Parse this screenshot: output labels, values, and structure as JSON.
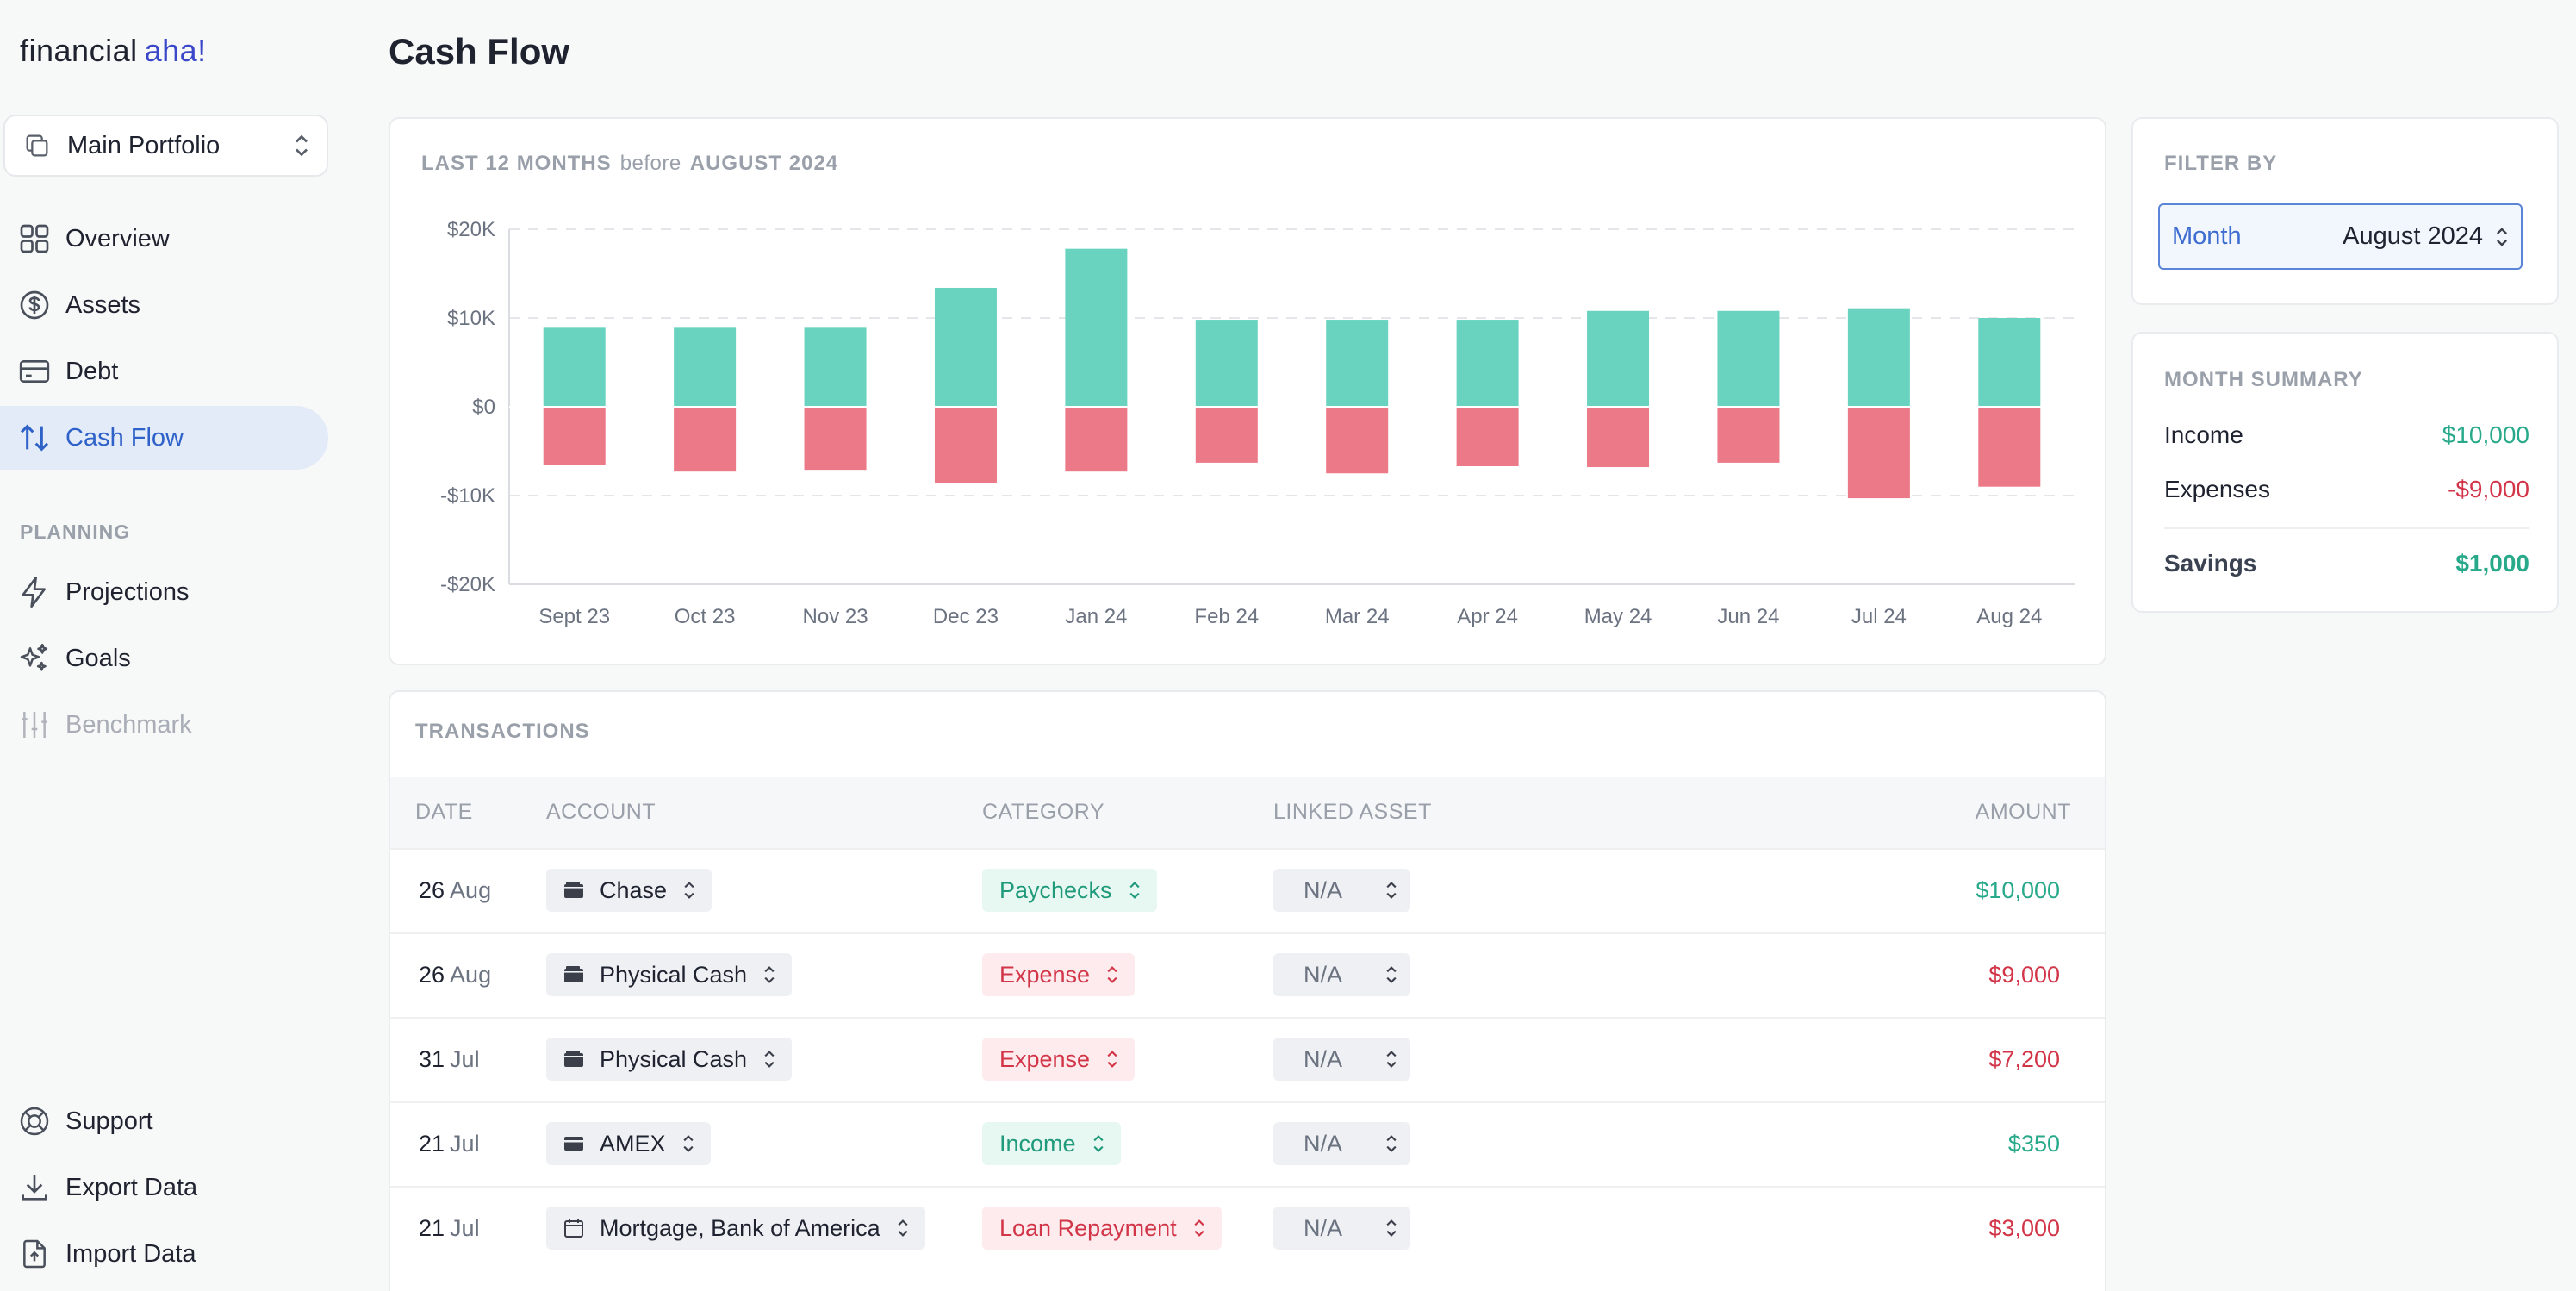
{
  "app": {
    "logo_text": "financial",
    "logo_accent": "aha!"
  },
  "portfolio_selector": {
    "label": "Main Portfolio"
  },
  "nav": {
    "overview": "Overview",
    "assets": "Assets",
    "debt": "Debt",
    "cash_flow": "Cash Flow",
    "planning_section": "PLANNING",
    "projections": "Projections",
    "goals": "Goals",
    "benchmark": "Benchmark",
    "support": "Support",
    "export": "Export Data",
    "import": "Import Data"
  },
  "page": {
    "title": "Cash Flow"
  },
  "chart_card": {
    "label_period": "LAST 12 MONTHS",
    "label_before": "before",
    "label_month": "AUGUST 2024"
  },
  "chart_data": {
    "type": "bar",
    "stacked": true,
    "title": "LAST 12 MONTHS before AUGUST 2024",
    "categories": [
      "Sept 23",
      "Oct 23",
      "Nov 23",
      "Dec 23",
      "Jan 24",
      "Feb 24",
      "Mar 24",
      "Apr 24",
      "May 24",
      "Jun 24",
      "Jul 24",
      "Aug 24"
    ],
    "series": [
      {
        "name": "Income",
        "color": "#6ad3c0",
        "values": [
          8900,
          8900,
          8900,
          13400,
          17800,
          9800,
          9800,
          9800,
          10800,
          10800,
          11100,
          10000
        ]
      },
      {
        "name": "Expenses",
        "color": "#eb7987",
        "values": [
          -6600,
          -7300,
          -7100,
          -8600,
          -7300,
          -6300,
          -7500,
          -6700,
          -6800,
          -6300,
          -10300,
          -9000
        ]
      }
    ],
    "y_ticks": [
      "$20K",
      "$10K",
      "$0",
      "-$10K",
      "-$20K"
    ],
    "ylim": [
      -20000,
      20000
    ],
    "grid": true
  },
  "transactions": {
    "title": "TRANSACTIONS",
    "columns": {
      "date": "DATE",
      "account": "ACCOUNT",
      "category": "CATEGORY",
      "linked_asset": "LINKED ASSET",
      "amount": "AMOUNT"
    },
    "rows": [
      {
        "day": "26",
        "month": "Aug",
        "account": "Chase",
        "category": "Paychecks",
        "linked_asset": "N/A",
        "amount": "$10,000"
      },
      {
        "day": "26",
        "month": "Aug",
        "account": "Physical Cash",
        "category": "Expense",
        "linked_asset": "N/A",
        "amount": "$9,000"
      },
      {
        "day": "31",
        "month": "Jul",
        "account": "Physical Cash",
        "category": "Expense",
        "linked_asset": "N/A",
        "amount": "$7,200"
      },
      {
        "day": "21",
        "month": "Jul",
        "account": "AMEX",
        "category": "Income",
        "linked_asset": "N/A",
        "amount": "$350"
      },
      {
        "day": "21",
        "month": "Jul",
        "account": "Mortgage, Bank of America",
        "category": "Loan Repayment",
        "linked_asset": "N/A",
        "amount": "$3,000"
      }
    ]
  },
  "filter": {
    "title": "FILTER BY",
    "label": "Month",
    "value": "August 2024"
  },
  "summary": {
    "title": "MONTH SUMMARY",
    "income_label": "Income",
    "income_value": "$10,000",
    "expenses_label": "Expenses",
    "expenses_value": "-$9,000",
    "savings_label": "Savings",
    "savings_value": "$1,000"
  },
  "colors": {
    "accent": "#2f62c8",
    "income": "#6ad3c0",
    "expense": "#eb7987",
    "positive_text": "#27a98a",
    "negative_text": "#d23448"
  }
}
